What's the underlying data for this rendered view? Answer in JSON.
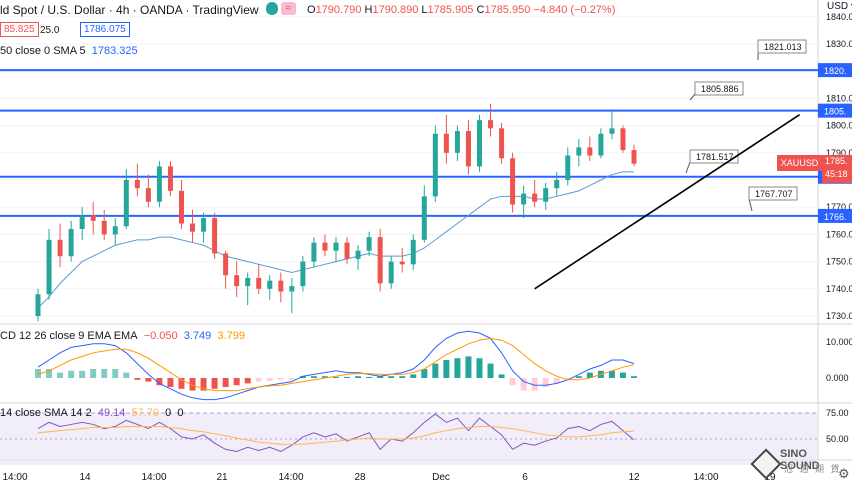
{
  "header": {
    "title": "ld Spot / U.S. Dollar · 4h · OANDA · TradingView",
    "ohlc": {
      "o_label": "O",
      "o": "1790.790",
      "h_label": "H",
      "h": "1790.890",
      "l_label": "L",
      "l": "1785.905",
      "c_label": "C",
      "c": "1785.950",
      "change": "−4.840 (−0.27%)"
    },
    "sell_price": "85.825",
    "spread": "25.0",
    "buy_price": "1786.075",
    "sma_label": "50 close 0 SMA 5",
    "sma_value": "1783.325",
    "currency": "USD"
  },
  "macd_header": {
    "label": "CD 12 26 close 9 EMA EMA",
    "v1": "−0.050",
    "v2": "3.749",
    "v3": "3.799"
  },
  "rsi_header": {
    "label": "14 close SMA 14 2",
    "v1": "49.14",
    "v2": "57.70",
    "v3": "0",
    "v4": "0"
  },
  "symbol_tag": {
    "symbol": "XAUUSD",
    "price": "1785.",
    "countdown": "45:18"
  },
  "watermark": {
    "text1": "SINO SOUND",
    "text2": "冠 通 期 貨"
  },
  "colors": {
    "up": "#26a69a",
    "down": "#ef5350",
    "hline": "#2962ff",
    "sma": "#5b9bd5",
    "macd": "#2962ff",
    "signal": "#ff9800",
    "rsi": "#7e57c2"
  },
  "chart_data": [
    {
      "type": "candlestick",
      "x_ticks": [
        "14:00",
        "14",
        "14:00",
        "21",
        "14:00",
        "28",
        "Dec",
        "6",
        "12",
        "14:00",
        "19"
      ],
      "y_ticks": [
        "1840.0",
        "1830.0",
        "1820.0",
        "1810.0",
        "1800.0",
        "1790.0",
        "1780.0",
        "1770.0",
        "1760.0",
        "1750.0",
        "1740.0",
        "1730.0"
      ],
      "ylim": [
        1727,
        1845
      ],
      "horizontal_levels": [
        {
          "price": 1820.4,
          "axis_label": "1820.",
          "note": "1821.013"
        },
        {
          "price": 1805.5,
          "axis_label": "1805.",
          "note": "1805.886"
        },
        {
          "price": 1781.2,
          "axis_label": "1781.",
          "note": "1781.517"
        },
        {
          "price": 1766.8,
          "axis_label": "1766.",
          "note": "1767.707"
        }
      ],
      "trendline": {
        "from": [
          45,
          1740
        ],
        "to": [
          69,
          1804
        ]
      },
      "candles": [
        {
          "o": 1730,
          "h": 1740,
          "l": 1728,
          "c": 1738
        },
        {
          "o": 1738,
          "h": 1762,
          "l": 1736,
          "c": 1758
        },
        {
          "o": 1758,
          "h": 1764,
          "l": 1748,
          "c": 1752
        },
        {
          "o": 1752,
          "h": 1765,
          "l": 1750,
          "c": 1762
        },
        {
          "o": 1762,
          "h": 1770,
          "l": 1758,
          "c": 1767
        },
        {
          "o": 1767,
          "h": 1772,
          "l": 1760,
          "c": 1765
        },
        {
          "o": 1765,
          "h": 1769,
          "l": 1758,
          "c": 1760
        },
        {
          "o": 1760,
          "h": 1766,
          "l": 1756,
          "c": 1763
        },
        {
          "o": 1763,
          "h": 1784,
          "l": 1762,
          "c": 1780
        },
        {
          "o": 1780,
          "h": 1786,
          "l": 1774,
          "c": 1777
        },
        {
          "o": 1777,
          "h": 1782,
          "l": 1770,
          "c": 1772
        },
        {
          "o": 1772,
          "h": 1787,
          "l": 1770,
          "c": 1785
        },
        {
          "o": 1785,
          "h": 1787,
          "l": 1774,
          "c": 1776
        },
        {
          "o": 1776,
          "h": 1780,
          "l": 1762,
          "c": 1764
        },
        {
          "o": 1764,
          "h": 1769,
          "l": 1757,
          "c": 1761
        },
        {
          "o": 1761,
          "h": 1768,
          "l": 1757,
          "c": 1766
        },
        {
          "o": 1766,
          "h": 1768,
          "l": 1751,
          "c": 1753
        },
        {
          "o": 1753,
          "h": 1754,
          "l": 1740,
          "c": 1745
        },
        {
          "o": 1745,
          "h": 1750,
          "l": 1737,
          "c": 1741
        },
        {
          "o": 1741,
          "h": 1746,
          "l": 1734,
          "c": 1744
        },
        {
          "o": 1744,
          "h": 1749,
          "l": 1738,
          "c": 1740
        },
        {
          "o": 1740,
          "h": 1745,
          "l": 1736,
          "c": 1743
        },
        {
          "o": 1743,
          "h": 1746,
          "l": 1735,
          "c": 1739
        },
        {
          "o": 1739,
          "h": 1744,
          "l": 1731,
          "c": 1741
        },
        {
          "o": 1741,
          "h": 1752,
          "l": 1739,
          "c": 1750
        },
        {
          "o": 1750,
          "h": 1759,
          "l": 1748,
          "c": 1757
        },
        {
          "o": 1757,
          "h": 1760,
          "l": 1752,
          "c": 1754
        },
        {
          "o": 1754,
          "h": 1759,
          "l": 1750,
          "c": 1757
        },
        {
          "o": 1757,
          "h": 1759,
          "l": 1749,
          "c": 1751
        },
        {
          "o": 1751,
          "h": 1756,
          "l": 1747,
          "c": 1754
        },
        {
          "o": 1754,
          "h": 1761,
          "l": 1752,
          "c": 1759
        },
        {
          "o": 1759,
          "h": 1762,
          "l": 1739,
          "c": 1742
        },
        {
          "o": 1742,
          "h": 1752,
          "l": 1740,
          "c": 1750
        },
        {
          "o": 1750,
          "h": 1755,
          "l": 1746,
          "c": 1749
        },
        {
          "o": 1749,
          "h": 1760,
          "l": 1747,
          "c": 1758
        },
        {
          "o": 1758,
          "h": 1778,
          "l": 1757,
          "c": 1774
        },
        {
          "o": 1774,
          "h": 1800,
          "l": 1772,
          "c": 1797
        },
        {
          "o": 1797,
          "h": 1804,
          "l": 1786,
          "c": 1790
        },
        {
          "o": 1790,
          "h": 1800,
          "l": 1787,
          "c": 1798
        },
        {
          "o": 1798,
          "h": 1802,
          "l": 1782,
          "c": 1785
        },
        {
          "o": 1785,
          "h": 1804,
          "l": 1783,
          "c": 1802
        },
        {
          "o": 1802,
          "h": 1808,
          "l": 1796,
          "c": 1799
        },
        {
          "o": 1799,
          "h": 1801,
          "l": 1786,
          "c": 1788
        },
        {
          "o": 1788,
          "h": 1790,
          "l": 1768,
          "c": 1771
        },
        {
          "o": 1771,
          "h": 1778,
          "l": 1766,
          "c": 1775
        },
        {
          "o": 1775,
          "h": 1780,
          "l": 1770,
          "c": 1772
        },
        {
          "o": 1772,
          "h": 1779,
          "l": 1769,
          "c": 1777
        },
        {
          "o": 1777,
          "h": 1783,
          "l": 1774,
          "c": 1780
        },
        {
          "o": 1780,
          "h": 1792,
          "l": 1778,
          "c": 1789
        },
        {
          "o": 1789,
          "h": 1795,
          "l": 1785,
          "c": 1792
        },
        {
          "o": 1792,
          "h": 1796,
          "l": 1787,
          "c": 1789
        },
        {
          "o": 1789,
          "h": 1799,
          "l": 1788,
          "c": 1797
        },
        {
          "o": 1797,
          "h": 1806,
          "l": 1795,
          "c": 1799
        },
        {
          "o": 1799,
          "h": 1800,
          "l": 1790,
          "c": 1791
        },
        {
          "o": 1791,
          "h": 1793,
          "l": 1785,
          "c": 1786
        }
      ],
      "sma": [
        1733,
        1737,
        1742,
        1746,
        1750,
        1752,
        1754,
        1756,
        1757,
        1758,
        1758,
        1759,
        1759,
        1758,
        1757,
        1756,
        1754,
        1752,
        1751,
        1750,
        1749,
        1748,
        1747,
        1746,
        1747,
        1748,
        1749,
        1750,
        1751,
        1752,
        1753,
        1752,
        1752,
        1752,
        1753,
        1755,
        1758,
        1761,
        1764,
        1767,
        1770,
        1773,
        1774,
        1774,
        1774,
        1773,
        1773,
        1774,
        1775,
        1776,
        1778,
        1780,
        1782,
        1783,
        1783
      ]
    },
    {
      "type": "bar+line",
      "name": "MACD",
      "y_ticks": [
        "10.000",
        "0.000"
      ],
      "ylim": [
        -9,
        16
      ],
      "histogram": [
        2.5,
        2.5,
        1.5,
        2,
        2,
        2.5,
        2.5,
        2.5,
        1.5,
        -0.5,
        -1,
        -2,
        -2.5,
        -3,
        -3.5,
        -3.5,
        -3,
        -2.5,
        -2,
        -1.5,
        -1,
        -0.8,
        -0.5,
        -0.5,
        0.5,
        0.5,
        0.5,
        0.3,
        0.3,
        0.5,
        0.3,
        0.5,
        0.5,
        0.5,
        1,
        2.5,
        4,
        5,
        5.5,
        6,
        5.5,
        4,
        1,
        -2,
        -3.5,
        -3.5,
        -2.5,
        -1.5,
        -0.5,
        0.5,
        1.5,
        2,
        2,
        1.5,
        0.5
      ],
      "macd": [
        3,
        5,
        7,
        8.5,
        9,
        9.5,
        9.5,
        9,
        7,
        4,
        1,
        -1.5,
        -3,
        -4.5,
        -5.5,
        -6,
        -6,
        -5.5,
        -4.5,
        -3.5,
        -2.5,
        -2,
        -1.5,
        -1,
        0.5,
        1,
        1.5,
        2,
        1.5,
        1.5,
        1,
        0.5,
        1,
        1.5,
        2.5,
        5,
        8.5,
        11,
        12.5,
        13,
        12.5,
        11,
        7,
        2,
        -1,
        -2,
        -2,
        -1.5,
        -0.5,
        1,
        2.5,
        3.5,
        5,
        5,
        4
      ],
      "signal": [
        1,
        2,
        3.5,
        5,
        6,
        7,
        7.5,
        8,
        8,
        7,
        5.5,
        3.5,
        1.5,
        -0.5,
        -2,
        -3,
        -3.5,
        -3.5,
        -3.5,
        -3,
        -2.5,
        -2.2,
        -2,
        -1.5,
        -1,
        -0.5,
        0,
        0.5,
        1,
        1.2,
        1.2,
        1,
        1,
        1,
        1.5,
        2.5,
        4.5,
        6.5,
        8,
        9.5,
        10.5,
        11,
        10.5,
        9,
        6.5,
        4,
        2,
        0.5,
        -0.5,
        -0.5,
        0,
        1,
        2,
        3,
        3.7
      ]
    },
    {
      "type": "line",
      "name": "RSI",
      "y_ticks": [
        "75.00",
        "50.00"
      ],
      "ylim": [
        32,
        82
      ],
      "rsi": [
        60,
        66,
        62,
        64,
        66,
        64,
        60,
        62,
        68,
        64,
        60,
        66,
        60,
        52,
        50,
        54,
        46,
        40,
        38,
        42,
        39,
        42,
        38,
        44,
        52,
        56,
        52,
        55,
        48,
        52,
        56,
        40,
        50,
        48,
        56,
        66,
        74,
        66,
        70,
        58,
        70,
        62,
        54,
        40,
        46,
        44,
        48,
        51,
        60,
        62,
        58,
        64,
        67,
        58,
        49
      ],
      "rsi_ma": [
        56,
        57,
        58,
        59,
        60,
        61,
        61,
        61,
        62,
        62,
        62,
        62,
        61,
        60,
        58,
        57,
        55,
        53,
        51,
        49,
        47,
        46,
        45,
        45,
        45,
        46,
        47,
        48,
        49,
        50,
        51,
        50,
        50,
        50,
        51,
        53,
        56,
        58,
        60,
        61,
        62,
        62,
        61,
        60,
        58,
        56,
        54,
        53,
        52,
        52,
        53,
        54,
        56,
        57,
        57.7
      ]
    }
  ]
}
